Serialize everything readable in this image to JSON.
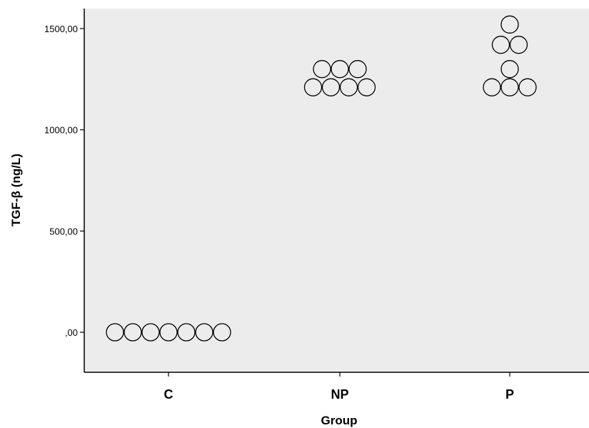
{
  "chart_data": {
    "type": "scatter",
    "subtype": "dot-plot",
    "xlabel": "Group",
    "ylabel": "TGF-β (ng/L)",
    "categories": [
      "C",
      "NP",
      "P"
    ],
    "yticks": [
      {
        "value": 0,
        "label": ",00"
      },
      {
        "value": 500,
        "label": "500,00"
      },
      {
        "value": 1000,
        "label": "1000,00"
      },
      {
        "value": 1500,
        "label": "1500,00"
      }
    ],
    "ylim": [
      -200,
      1600
    ],
    "grid": false,
    "series": [
      {
        "category": "C",
        "values": [
          0,
          0,
          0,
          0,
          0,
          0,
          0
        ]
      },
      {
        "category": "NP",
        "values": [
          1210,
          1210,
          1210,
          1210,
          1300,
          1300,
          1300
        ]
      },
      {
        "category": "P",
        "values": [
          1210,
          1210,
          1210,
          1300,
          1420,
          1420,
          1520
        ]
      }
    ],
    "colors": {
      "plot_background": "#ececec",
      "marker_fill": "#ececec",
      "marker_stroke": "#000000"
    }
  }
}
